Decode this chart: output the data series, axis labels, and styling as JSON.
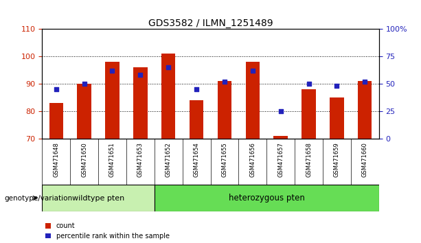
{
  "title": "GDS3582 / ILMN_1251489",
  "categories": [
    "GSM471648",
    "GSM471650",
    "GSM471651",
    "GSM471653",
    "GSM471652",
    "GSM471654",
    "GSM471655",
    "GSM471656",
    "GSM471657",
    "GSM471658",
    "GSM471659",
    "GSM471660"
  ],
  "bar_values": [
    83,
    90,
    98,
    96,
    101,
    84,
    91,
    98,
    71,
    88,
    85,
    91
  ],
  "percentile_values_pct": [
    45,
    50,
    62,
    58,
    65,
    45,
    52,
    62,
    25,
    50,
    48,
    52
  ],
  "bar_color": "#cc2200",
  "percentile_color": "#2222bb",
  "ylim_left": [
    70,
    110
  ],
  "ylim_right": [
    0,
    100
  ],
  "yticks_left": [
    70,
    80,
    90,
    100,
    110
  ],
  "yticks_right": [
    0,
    25,
    50,
    75,
    100
  ],
  "ytick_right_labels": [
    "0",
    "25",
    "50",
    "75",
    "100%"
  ],
  "wildtype_count": 4,
  "heterozygous_count": 8,
  "wildtype_label": "wildtype pten",
  "heterozygous_label": "heterozygous pten",
  "wildtype_color": "#c8f0b0",
  "heterozygous_color": "#66dd55",
  "group_label": "genotype/variation",
  "legend_count_label": "count",
  "legend_percentile_label": "percentile rank within the sample",
  "bar_base": 70,
  "label_color_left": "#cc2200",
  "label_color_right": "#2222bb",
  "bar_width": 0.5,
  "label_gray": "#c8c8c8"
}
